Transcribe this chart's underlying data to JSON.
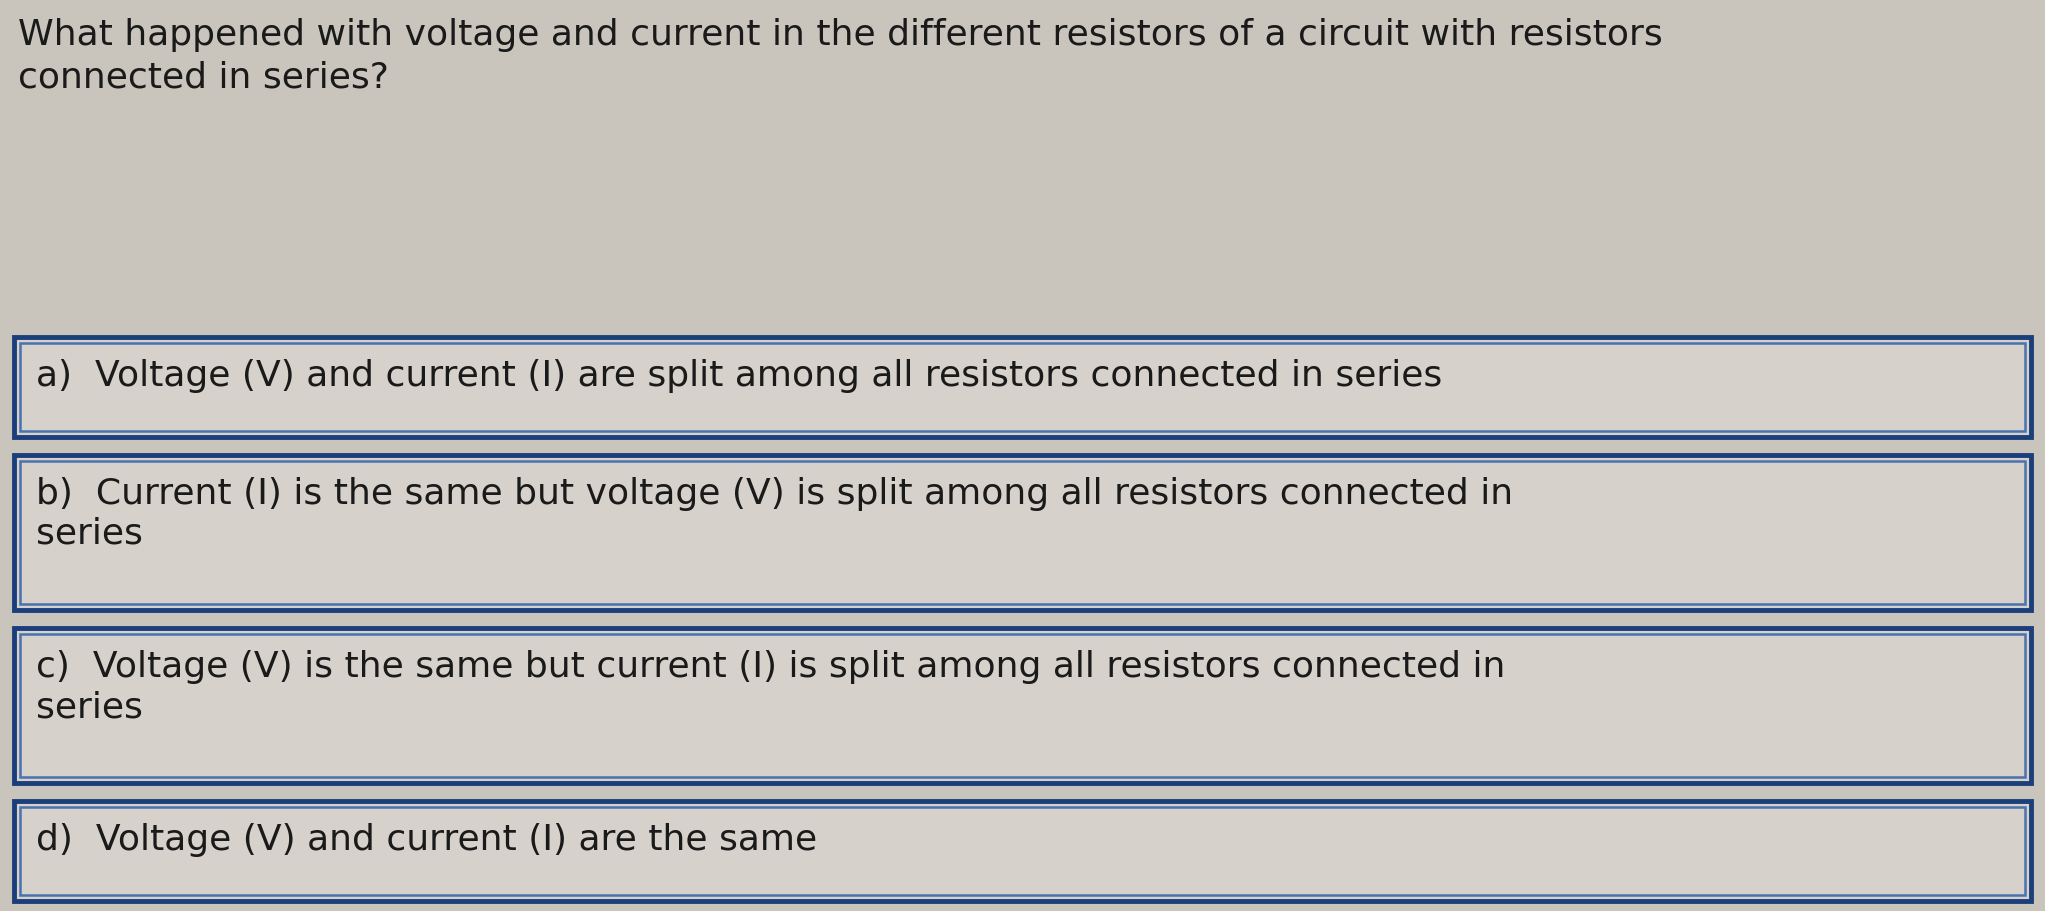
{
  "question_line1": "What happened with voltage and current in the different resistors of a circuit with resistors",
  "question_line2": "connected in series?",
  "options": [
    {
      "label": "a)",
      "text": "Voltage (V) and current (I) are split among all resistors connected in series",
      "two_line": false
    },
    {
      "label": "b)",
      "text_line1": "Current (I) is the same but voltage (V) is split among all resistors connected in",
      "text_line2": "series",
      "two_line": true
    },
    {
      "label": "c)",
      "text_line1": "Voltage (V) is the same but current (I) is split among all resistors connected in",
      "text_line2": "series",
      "two_line": true
    },
    {
      "label": "d)",
      "text": "Voltage (V) and current (I) are the same",
      "two_line": false
    }
  ],
  "bg_color": "#c9c4bc",
  "box_bg_color": "#d6d1ca",
  "box_border_outer": "#1b3f7a",
  "box_border_inner": "#4a72b0",
  "question_color": "#1a1a1a",
  "text_color": "#1a1a1a",
  "font_size": 26,
  "question_font_size": 26,
  "fig_width": 20.45,
  "fig_height": 9.11,
  "dpi": 100
}
